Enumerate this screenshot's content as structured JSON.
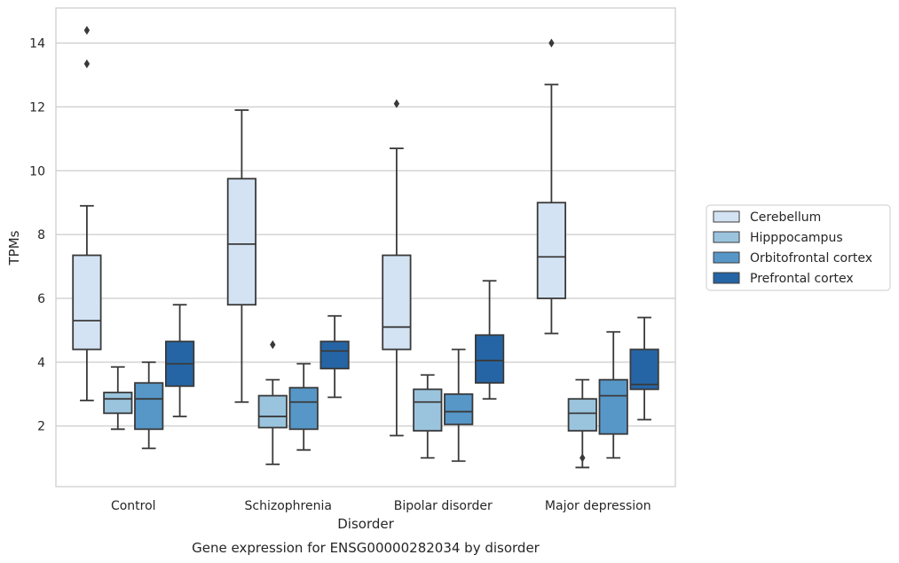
{
  "chart_data": {
    "type": "box",
    "xlabel": "Disorder",
    "ylabel": "TPMs",
    "caption": "Gene expression for ENSG00000282034 by disorder",
    "categories": [
      "Control",
      "Schizophrenia",
      "Bipolar disorder",
      "Major depression"
    ],
    "yticks": [
      "2",
      "4",
      "6",
      "8",
      "10",
      "12",
      "14"
    ],
    "ylim": [
      0.1,
      15.1
    ],
    "grid": "horizontal",
    "legend_position": "right",
    "series": [
      {
        "name": "Cerebellum",
        "color": "#d4e3f3",
        "boxes": [
          {
            "whisker_low": 2.8,
            "q1": 4.4,
            "median": 5.3,
            "q3": 7.35,
            "whisker_high": 8.9,
            "outliers": [
              13.35,
              14.4
            ]
          },
          {
            "whisker_low": 2.75,
            "q1": 5.8,
            "median": 7.7,
            "q3": 9.75,
            "whisker_high": 11.9,
            "outliers": []
          },
          {
            "whisker_low": 1.7,
            "q1": 4.4,
            "median": 5.1,
            "q3": 7.35,
            "whisker_high": 10.7,
            "outliers": [
              12.1
            ]
          },
          {
            "whisker_low": 4.9,
            "q1": 6.0,
            "median": 7.3,
            "q3": 9.0,
            "whisker_high": 12.7,
            "outliers": [
              14.0
            ]
          }
        ]
      },
      {
        "name": "Hipppocampus",
        "color": "#9ac4de",
        "boxes": [
          {
            "whisker_low": 1.9,
            "q1": 2.4,
            "median": 2.85,
            "q3": 3.05,
            "whisker_high": 3.85,
            "outliers": []
          },
          {
            "whisker_low": 0.8,
            "q1": 1.95,
            "median": 2.3,
            "q3": 2.95,
            "whisker_high": 3.45,
            "outliers": [
              4.55
            ]
          },
          {
            "whisker_low": 1.0,
            "q1": 1.85,
            "median": 2.75,
            "q3": 3.15,
            "whisker_high": 3.6,
            "outliers": []
          },
          {
            "whisker_low": 0.7,
            "q1": 1.85,
            "median": 2.4,
            "q3": 2.85,
            "whisker_high": 3.45,
            "outliers": [
              1.0
            ]
          }
        ]
      },
      {
        "name": "Orbitofrontal cortex",
        "color": "#5697c8",
        "boxes": [
          {
            "whisker_low": 1.3,
            "q1": 1.9,
            "median": 2.85,
            "q3": 3.35,
            "whisker_high": 4.0,
            "outliers": []
          },
          {
            "whisker_low": 1.25,
            "q1": 1.9,
            "median": 2.75,
            "q3": 3.2,
            "whisker_high": 3.95,
            "outliers": []
          },
          {
            "whisker_low": 0.9,
            "q1": 2.05,
            "median": 2.45,
            "q3": 3.0,
            "whisker_high": 4.4,
            "outliers": []
          },
          {
            "whisker_low": 1.0,
            "q1": 1.75,
            "median": 2.95,
            "q3": 3.45,
            "whisker_high": 4.95,
            "outliers": []
          }
        ]
      },
      {
        "name": "Prefrontal cortex",
        "color": "#2565a5",
        "boxes": [
          {
            "whisker_low": 2.3,
            "q1": 3.25,
            "median": 3.95,
            "q3": 4.65,
            "whisker_high": 5.8,
            "outliers": []
          },
          {
            "whisker_low": 2.9,
            "q1": 3.8,
            "median": 4.35,
            "q3": 4.65,
            "whisker_high": 5.45,
            "outliers": []
          },
          {
            "whisker_low": 2.85,
            "q1": 3.35,
            "median": 4.05,
            "q3": 4.85,
            "whisker_high": 6.55,
            "outliers": []
          },
          {
            "whisker_low": 2.2,
            "q1": 3.15,
            "median": 3.3,
            "q3": 4.4,
            "whisker_high": 5.4,
            "outliers": []
          }
        ]
      }
    ]
  }
}
